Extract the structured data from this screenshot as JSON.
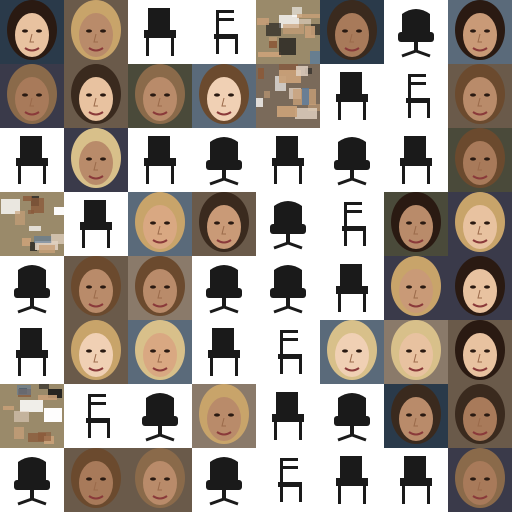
{
  "grid": {
    "rows": 8,
    "cols": 8,
    "cells": [
      [
        "face",
        "face",
        "chair",
        "chair",
        "noise",
        "face",
        "chair",
        "face"
      ],
      [
        "face",
        "face",
        "face",
        "face",
        "noise",
        "chair",
        "chair",
        "face"
      ],
      [
        "chair",
        "face",
        "chair",
        "chair",
        "chair",
        "chair",
        "chair",
        "face"
      ],
      [
        "noise",
        "chair",
        "face",
        "face",
        "chair",
        "chair",
        "face",
        "face"
      ],
      [
        "chair",
        "face",
        "face",
        "chair",
        "chair",
        "chair",
        "face",
        "face"
      ],
      [
        "chair",
        "face",
        "face",
        "chair",
        "chair",
        "face",
        "face",
        "face"
      ],
      [
        "noise",
        "chair",
        "chair",
        "face",
        "chair",
        "chair",
        "face",
        "face"
      ],
      [
        "chair",
        "face",
        "face",
        "chair",
        "chair",
        "chair",
        "chair",
        "face"
      ]
    ]
  },
  "palette": {
    "chair_background": "#ffffff",
    "chair_color": "#1a1a1a",
    "skin_tones": [
      "#e8c2a0",
      "#d9a882",
      "#c99a77",
      "#b98b6a",
      "#f0d0b4",
      "#a87a5a"
    ],
    "hair_tones": [
      "#3a2a1e",
      "#6b4a2e",
      "#c8a46a",
      "#2a1a12",
      "#8a6a4a",
      "#d8c08a"
    ],
    "noise_tones": [
      "#7a6a5a",
      "#4a5a6a",
      "#9a8a6a",
      "#5a4a3a"
    ]
  }
}
